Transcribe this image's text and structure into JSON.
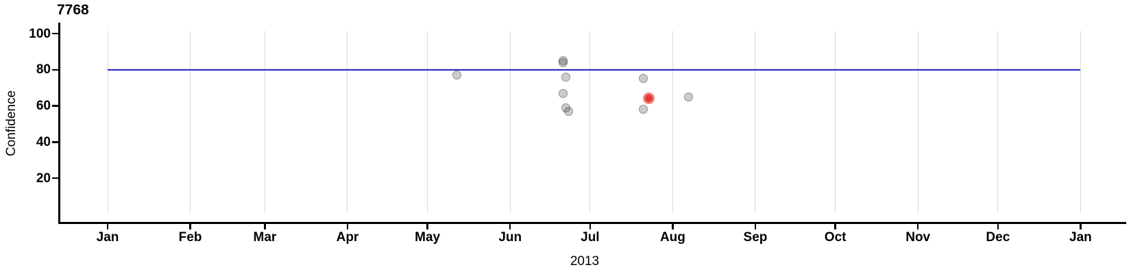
{
  "title": "7768",
  "axes": {
    "y_label": "Confidence",
    "x_year_label": "2013",
    "y_tick_labels": [
      "100",
      "80",
      "60",
      "40",
      "20"
    ],
    "x_tick_labels": [
      "Jan",
      "Feb",
      "Mar",
      "Apr",
      "May",
      "Jun",
      "Jul",
      "Aug",
      "Sep",
      "Oct",
      "Nov",
      "Dec",
      "Jan"
    ]
  },
  "chart_data": {
    "type": "scatter",
    "title": "7768",
    "xlabel": "2013",
    "ylabel": "Confidence",
    "x_axis": {
      "start": "2013-01-01",
      "end": "2014-01-01",
      "tick_labels": [
        "Jan",
        "Feb",
        "Mar",
        "Apr",
        "May",
        "Jun",
        "Jul",
        "Aug",
        "Sep",
        "Oct",
        "Nov",
        "Dec",
        "Jan"
      ],
      "grid": true
    },
    "y_axis": {
      "ticks": [
        20,
        40,
        60,
        80,
        100
      ],
      "range": [
        0,
        105
      ],
      "grid": false
    },
    "reference_line": {
      "value": 80,
      "color": "#2222cc"
    },
    "points": [
      {
        "date": "2013-05-12",
        "confidence": 77,
        "highlight": false
      },
      {
        "date": "2013-06-21",
        "confidence": 85,
        "highlight": false
      },
      {
        "date": "2013-06-21",
        "confidence": 84,
        "highlight": false
      },
      {
        "date": "2013-06-22",
        "confidence": 76,
        "highlight": false
      },
      {
        "date": "2013-06-21",
        "confidence": 67,
        "highlight": false
      },
      {
        "date": "2013-06-22",
        "confidence": 59,
        "highlight": false
      },
      {
        "date": "2013-06-23",
        "confidence": 57,
        "highlight": false
      },
      {
        "date": "2013-07-21",
        "confidence": 75,
        "highlight": false
      },
      {
        "date": "2013-07-23",
        "confidence": 64,
        "highlight": true
      },
      {
        "date": "2013-07-21",
        "confidence": 58,
        "highlight": false
      },
      {
        "date": "2013-08-07",
        "confidence": 65,
        "highlight": false
      }
    ],
    "colors": {
      "normal_point": "#cccccc",
      "normal_point_border": "#a6a6a6",
      "highlight_point": "#e23a33",
      "highlight_point_border": "#f2837b",
      "reference_line": "#2222cc",
      "gridline": "#d9d9d9",
      "axis": "#000000"
    },
    "legend": "none"
  }
}
